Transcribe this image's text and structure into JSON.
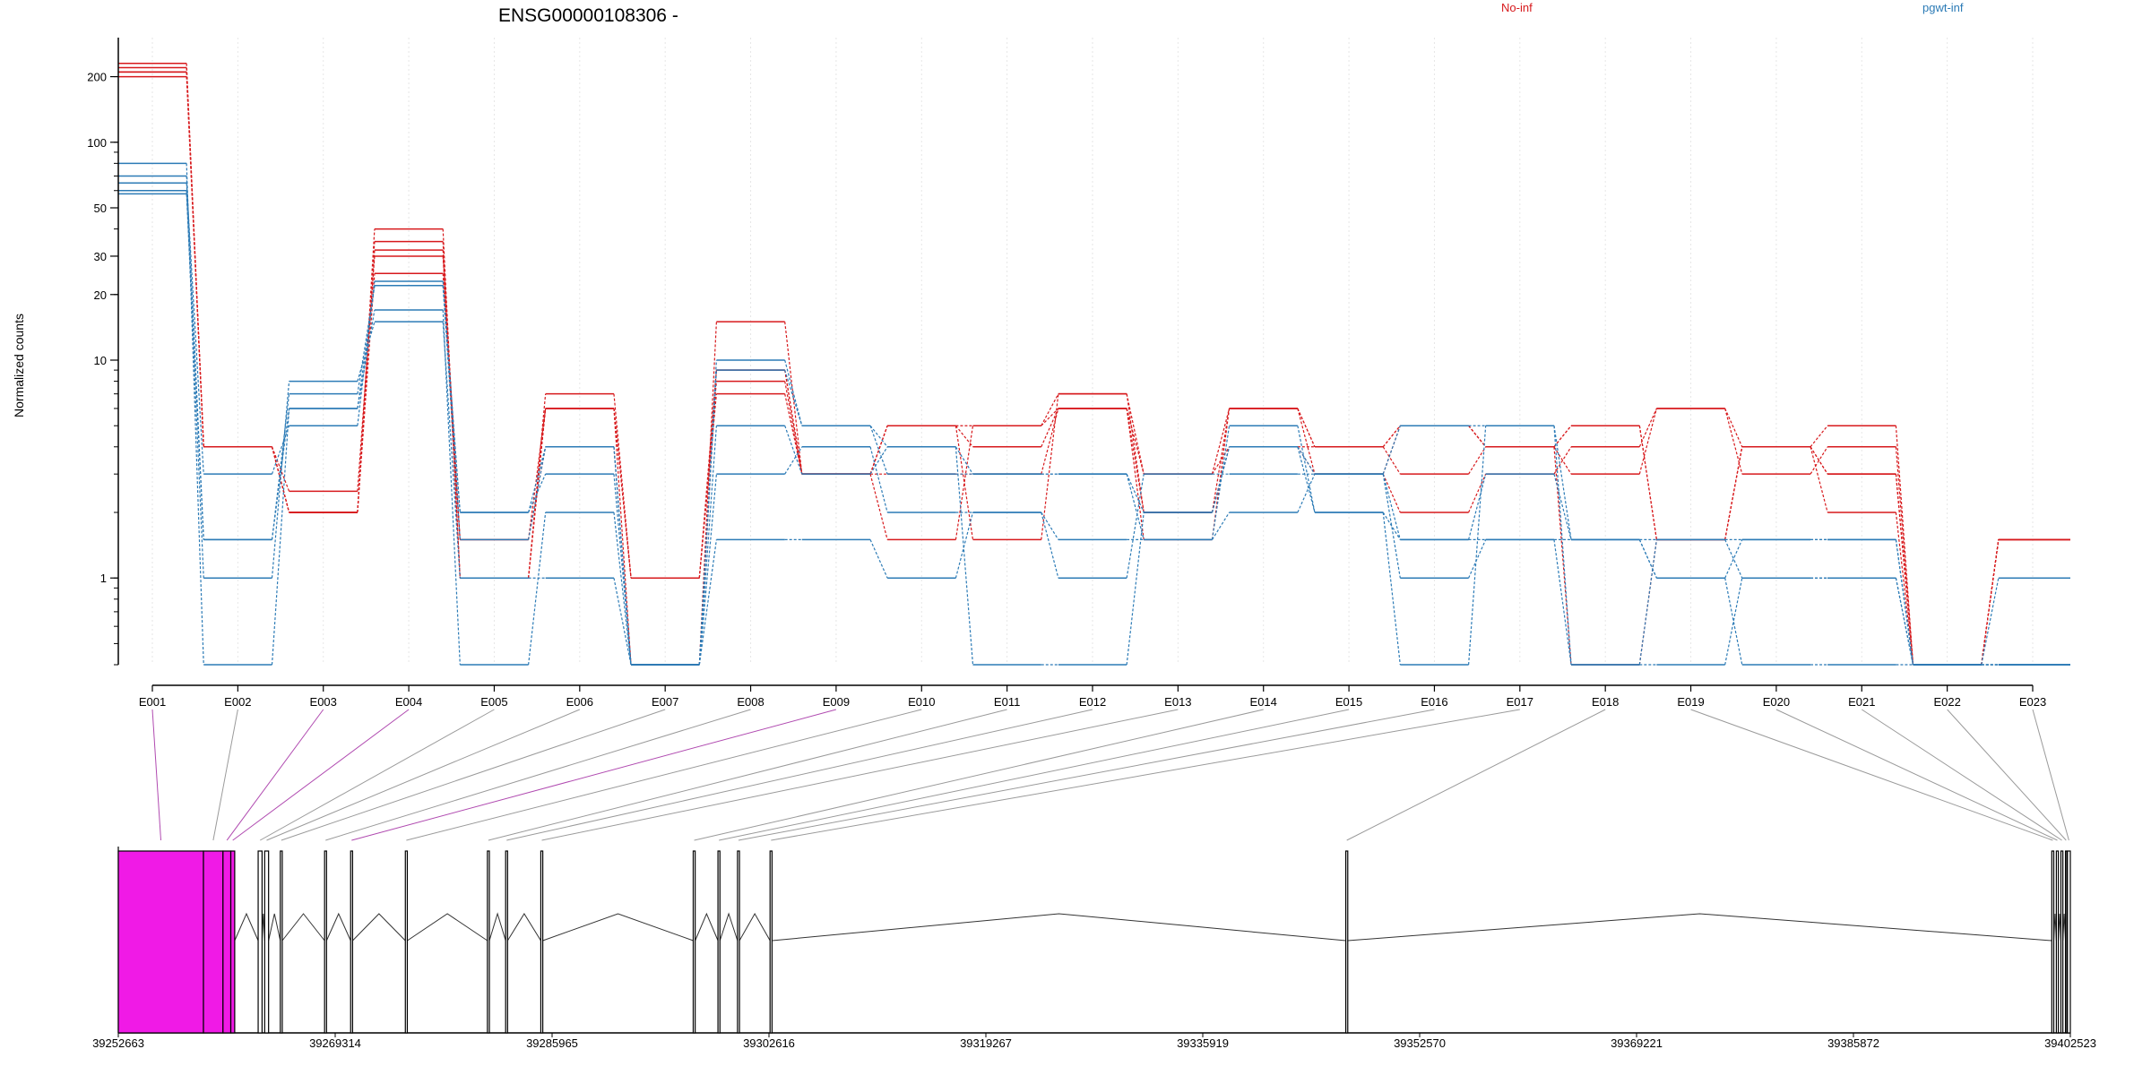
{
  "chart_data": {
    "type": "line",
    "title": "ENSG00000108306 -",
    "ylabel": "Normalized counts",
    "xlabel": "",
    "yscale": "log",
    "ylim": [
      0.4,
      250
    ],
    "yticks": [
      "1",
      "10",
      "20",
      "30",
      "50",
      "100",
      "200"
    ],
    "ytick_values": [
      1,
      10,
      20,
      30,
      50,
      100,
      200
    ],
    "categories": [
      "E001",
      "E002",
      "E003",
      "E004",
      "E005",
      "E006",
      "E007",
      "E008",
      "E009",
      "E010",
      "E011",
      "E012",
      "E013",
      "E014",
      "E015",
      "E016",
      "E017",
      "E018",
      "E019",
      "E020",
      "E021",
      "E022",
      "E023"
    ],
    "legend": [
      {
        "label": "No-inf",
        "color": "#d7191c"
      },
      {
        "label": "pgwt-inf",
        "color": "#2c7bb6"
      }
    ],
    "grid": true,
    "series": [
      {
        "group": "No-inf",
        "color": "#d7191c",
        "values": [
          230,
          4,
          2.5,
          30,
          1.5,
          4,
          0.4,
          15,
          3,
          3,
          3,
          6,
          3,
          4,
          4,
          5,
          4,
          5,
          1.5,
          4,
          3,
          0.4,
          1.5
        ]
      },
      {
        "group": "No-inf",
        "color": "#d7191c",
        "values": [
          220,
          4,
          2,
          32,
          1,
          6,
          1,
          8,
          3,
          5,
          4,
          6,
          2,
          6,
          4,
          3,
          4,
          3,
          6,
          4,
          2,
          0.4,
          1.5
        ]
      },
      {
        "group": "No-inf",
        "color": "#d7191c",
        "values": [
          210,
          4,
          2,
          35,
          1,
          6,
          1,
          9,
          3,
          1.5,
          5,
          6,
          1.5,
          6,
          3,
          2,
          3,
          4,
          6,
          3,
          4,
          0.4,
          1.5
        ]
      },
      {
        "group": "No-inf",
        "color": "#d7191c",
        "values": [
          200,
          4,
          2,
          25,
          1.5,
          6,
          0.4,
          9,
          3,
          5,
          5,
          7,
          3,
          6,
          4,
          5,
          4,
          0.4,
          1.5,
          4,
          5,
          0.4,
          1.5
        ]
      },
      {
        "group": "No-inf",
        "color": "#d7191c",
        "values": [
          210,
          4,
          2,
          40,
          1,
          7,
          1,
          7,
          3,
          5,
          1.5,
          7,
          2,
          4,
          3,
          5,
          4,
          5,
          1.5,
          4,
          3,
          0.4,
          1.5
        ]
      },
      {
        "group": "pgwt-inf",
        "color": "#2c7bb6",
        "values": [
          80,
          0.4,
          6,
          17,
          0.4,
          2,
          0.4,
          10,
          5,
          4,
          0.4,
          0.4,
          2,
          4,
          2,
          0.4,
          5,
          0.4,
          0.4,
          1,
          1,
          0.4,
          1
        ]
      },
      {
        "group": "pgwt-inf",
        "color": "#2c7bb6",
        "values": [
          70,
          1.5,
          7,
          22,
          1.5,
          4,
          0.4,
          5,
          3,
          4,
          3,
          3,
          1.5,
          5,
          2,
          1.5,
          3,
          1.5,
          1.5,
          1.5,
          1.5,
          0.4,
          0.4
        ]
      },
      {
        "group": "pgwt-inf",
        "color": "#2c7bb6",
        "values": [
          65,
          3,
          5,
          23,
          2,
          3,
          0.4,
          3,
          4,
          2,
          2,
          1,
          3,
          3,
          3,
          1.5,
          1.5,
          1.5,
          1,
          0.4,
          0.4,
          0.4,
          0.4
        ]
      },
      {
        "group": "pgwt-inf",
        "color": "#2c7bb6",
        "values": [
          60,
          1,
          8,
          15,
          1,
          1,
          0.4,
          1.5,
          1.5,
          1,
          2,
          1.5,
          1.5,
          2,
          3,
          1,
          1.5,
          0.4,
          1.5,
          1,
          1,
          0.4,
          0.4
        ]
      },
      {
        "group": "pgwt-inf",
        "color": "#2c7bb6",
        "values": [
          58,
          1.5,
          6,
          22,
          2,
          4,
          0.4,
          9,
          5,
          3,
          3,
          3,
          2,
          4,
          3,
          5,
          5,
          1.5,
          1,
          1.5,
          1.5,
          0.4,
          0.4
        ]
      }
    ]
  },
  "gene_model": {
    "coordinate_labels": [
      "39252663",
      "39269314",
      "39285965",
      "39302616",
      "39319267",
      "39335919",
      "39352570",
      "39369221",
      "39385872",
      "39402523"
    ],
    "coordinate_values": [
      39252663,
      39269314,
      39285965,
      39302616,
      39319267,
      39335919,
      39352570,
      39369221,
      39385872,
      39402523
    ],
    "exon_color": "#f01ae6",
    "highlighted_connector_color": "#b04ab0",
    "exon_bins": [
      {
        "id": "E001",
        "start": 39252663,
        "end": 39259200,
        "filled": true
      },
      {
        "id": "E002",
        "start": 39259200,
        "end": 39260700,
        "filled": true
      },
      {
        "id": "E003",
        "start": 39260700,
        "end": 39261300,
        "filled": true
      },
      {
        "id": "E004",
        "start": 39261300,
        "end": 39261600,
        "filled": true
      },
      {
        "id": "E005",
        "start": 39263400,
        "end": 39263700,
        "filled": false
      },
      {
        "id": "E006",
        "start": 39263900,
        "end": 39264200,
        "filled": false
      },
      {
        "id": "E007",
        "start": 39265100,
        "end": 39265250,
        "filled": false
      },
      {
        "id": "E008",
        "start": 39268500,
        "end": 39268650,
        "filled": false
      },
      {
        "id": "E009",
        "start": 39270500,
        "end": 39270650,
        "filled": false
      },
      {
        "id": "E010",
        "start": 39274700,
        "end": 39274850,
        "filled": false
      },
      {
        "id": "E011",
        "start": 39281000,
        "end": 39281150,
        "filled": false
      },
      {
        "id": "E012",
        "start": 39282400,
        "end": 39282550,
        "filled": false
      },
      {
        "id": "E013",
        "start": 39285100,
        "end": 39285250,
        "filled": false
      },
      {
        "id": "E014",
        "start": 39296800,
        "end": 39296950,
        "filled": false
      },
      {
        "id": "E015",
        "start": 39298700,
        "end": 39298850,
        "filled": false
      },
      {
        "id": "E016",
        "start": 39300200,
        "end": 39300350,
        "filled": false
      },
      {
        "id": "E017",
        "start": 39302700,
        "end": 39302850,
        "filled": false
      },
      {
        "id": "E018",
        "start": 39346900,
        "end": 39347050,
        "filled": false
      },
      {
        "id": "E019",
        "start": 39401100,
        "end": 39401250,
        "filled": false
      },
      {
        "id": "E020",
        "start": 39401450,
        "end": 39401600,
        "filled": false
      },
      {
        "id": "E021",
        "start": 39401800,
        "end": 39401950,
        "filled": false
      },
      {
        "id": "E022",
        "start": 39402150,
        "end": 39402250,
        "filled": false
      },
      {
        "id": "E023",
        "start": 39402300,
        "end": 39402523,
        "filled": false
      }
    ],
    "highlighted_connectors": [
      "E001",
      "E003",
      "E004",
      "E009"
    ]
  }
}
